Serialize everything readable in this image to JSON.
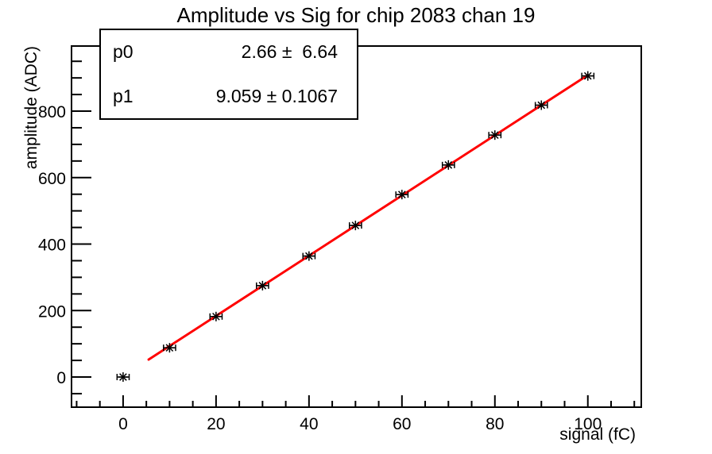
{
  "title": "Amplitude vs Sig for chip 2083 chan 19",
  "stats": {
    "rows": [
      {
        "name": "p0",
        "value": "2.66 ±  6.64"
      },
      {
        "name": "p1",
        "value": "9.059 ± 0.1067"
      }
    ]
  },
  "chart_data": {
    "type": "scatter",
    "title": "Amplitude vs Sig for chip 2083 chan 19",
    "xlabel": "signal (fC)",
    "ylabel": "amplitude (ADC)",
    "xlim": [
      -11.1,
      111.5
    ],
    "ylim": [
      -90.7,
      995.9
    ],
    "grid": false,
    "legend": false,
    "x": [
      0,
      10,
      20,
      30,
      40,
      50,
      60,
      70,
      80,
      90,
      100
    ],
    "y": [
      0,
      88,
      182,
      275,
      364,
      456,
      549,
      638,
      728,
      818,
      906
    ],
    "xerr": 1.3,
    "marker": "asterisk",
    "marker_color": "#000000",
    "x_axis": {
      "major_ticks": [
        0,
        20,
        40,
        60,
        80,
        100
      ],
      "minor_step": 5
    },
    "y_axis": {
      "major_ticks": [
        0,
        200,
        400,
        600,
        800
      ],
      "minor_step": 50
    },
    "fit": {
      "type": "linear",
      "p0": 2.66,
      "p0_err": 6.64,
      "p1": 9.059,
      "p1_err": 0.1067,
      "x_from": 5.5,
      "x_to": 100,
      "color": "#ff0000"
    }
  }
}
